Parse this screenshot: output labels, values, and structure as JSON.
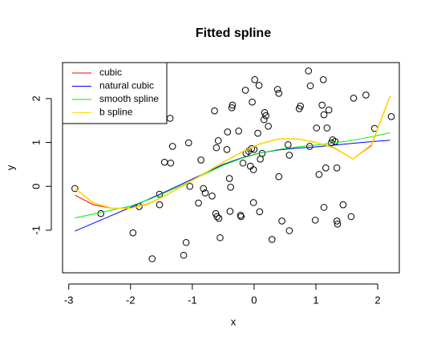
{
  "chart_data": {
    "type": "line",
    "title": "Fitted spline",
    "xlabel": "x",
    "ylabel": "y",
    "xlim": [
      -3.1,
      2.35
    ],
    "ylim": [
      -1.97,
      2.82
    ],
    "xticks": [
      -3,
      -2,
      -1,
      0,
      1,
      2
    ],
    "yticks": [
      -1,
      0,
      1,
      2
    ],
    "legend": "top-left",
    "points": {
      "x": [
        -2.9,
        -2.48,
        -1.96,
        -1.86,
        -1.65,
        -1.53,
        -1.53,
        -1.36,
        -1.32,
        -1.35,
        -1.45,
        -1.06,
        -1.1,
        -1.14,
        -1.04,
        -0.9,
        -0.86,
        -0.82,
        -0.79,
        -0.68,
        -0.61,
        -0.64,
        -0.58,
        -0.62,
        -0.6,
        -0.57,
        -0.55,
        -0.44,
        -0.43,
        -0.4,
        -0.38,
        -0.39,
        -0.36,
        -0.35,
        -0.25,
        -0.22,
        -0.21,
        -0.18,
        -0.14,
        -0.13,
        -0.09,
        -0.06,
        -0.04,
        -0.03,
        0.0,
        -0.01,
        -0.01,
        0.01,
        0.06,
        0.08,
        0.1,
        0.09,
        0.13,
        0.16,
        0.17,
        0.19,
        0.23,
        0.29,
        0.38,
        0.4,
        0.4,
        0.45,
        0.55,
        0.57,
        0.57,
        0.73,
        0.75,
        0.88,
        0.91,
        0.9,
        0.99,
        1.01,
        1.05,
        1.12,
        1.1,
        1.13,
        1.16,
        1.18,
        1.21,
        1.25,
        1.27,
        1.31,
        1.34,
        1.34,
        1.35,
        1.44,
        1.57,
        1.61,
        1.81,
        1.95,
        2.22,
        1.13
      ],
      "y": [
        -0.05,
        -0.62,
        -1.06,
        -0.46,
        -1.65,
        -0.18,
        -0.42,
        1.55,
        0.91,
        0.53,
        0.55,
        0.99,
        -1.28,
        -1.57,
        0.0,
        -0.38,
        0.6,
        -0.05,
        -0.15,
        -0.22,
        0.88,
        1.72,
        1.04,
        -0.62,
        -0.69,
        -0.73,
        -1.17,
        0.84,
        1.24,
        0.18,
        -0.02,
        -0.57,
        1.79,
        1.85,
        1.26,
        -0.66,
        -0.69,
        0.53,
        2.19,
        0.75,
        0.8,
        0.46,
        0.86,
        1.92,
        0.84,
        0.38,
        -0.37,
        2.43,
        1.21,
        2.3,
        0.62,
        -0.58,
        0.75,
        1.52,
        1.68,
        1.61,
        1.37,
        -1.21,
        2.21,
        2.12,
        0.22,
        -0.79,
        0.95,
        -1.01,
        0.71,
        1.77,
        1.83,
        2.63,
        2.29,
        0.91,
        -0.77,
        1.33,
        0.27,
        2.43,
        1.85,
        1.63,
        0.42,
        1.33,
        1.74,
        0.99,
        1.06,
        1.02,
        0.42,
        -0.79,
        -0.86,
        -0.42,
        -0.69,
        2.01,
        2.08,
        1.32,
        1.59,
        -0.48
      ]
    },
    "x": [
      -2.9,
      -2.6,
      -2.3,
      -2.0,
      -1.7,
      -1.4,
      -1.1,
      -0.8,
      -0.5,
      -0.2,
      0.1,
      0.4,
      0.7,
      1.0,
      1.3,
      1.6,
      1.9,
      2.2
    ],
    "series": [
      {
        "name": "cubic",
        "color": "#ff0000",
        "values": [
          -0.2,
          -0.42,
          -0.5,
          -0.49,
          -0.39,
          -0.18,
          0.05,
          0.3,
          0.55,
          0.78,
          0.97,
          1.08,
          1.08,
          1.0,
          0.87,
          0.62,
          0.93,
          2.05
        ]
      },
      {
        "name": "natural cubic",
        "color": "#0000ff",
        "values": [
          -1.02,
          -0.84,
          -0.66,
          -0.48,
          -0.29,
          -0.1,
          0.1,
          0.3,
          0.5,
          0.65,
          0.76,
          0.83,
          0.87,
          0.9,
          0.94,
          0.98,
          1.02,
          1.05
        ]
      },
      {
        "name": "smooth spline",
        "color": "#00ee00",
        "values": [
          -0.72,
          -0.63,
          -0.54,
          -0.45,
          -0.3,
          -0.12,
          0.07,
          0.28,
          0.48,
          0.64,
          0.76,
          0.84,
          0.9,
          0.94,
          0.99,
          1.05,
          1.13,
          1.22
        ]
      },
      {
        "name": "b spline",
        "color": "#ffd700",
        "values": [
          -0.05,
          -0.38,
          -0.5,
          -0.5,
          -0.4,
          -0.18,
          0.05,
          0.3,
          0.55,
          0.78,
          0.97,
          1.08,
          1.08,
          1.0,
          0.88,
          0.62,
          0.95,
          2.05
        ]
      }
    ]
  }
}
